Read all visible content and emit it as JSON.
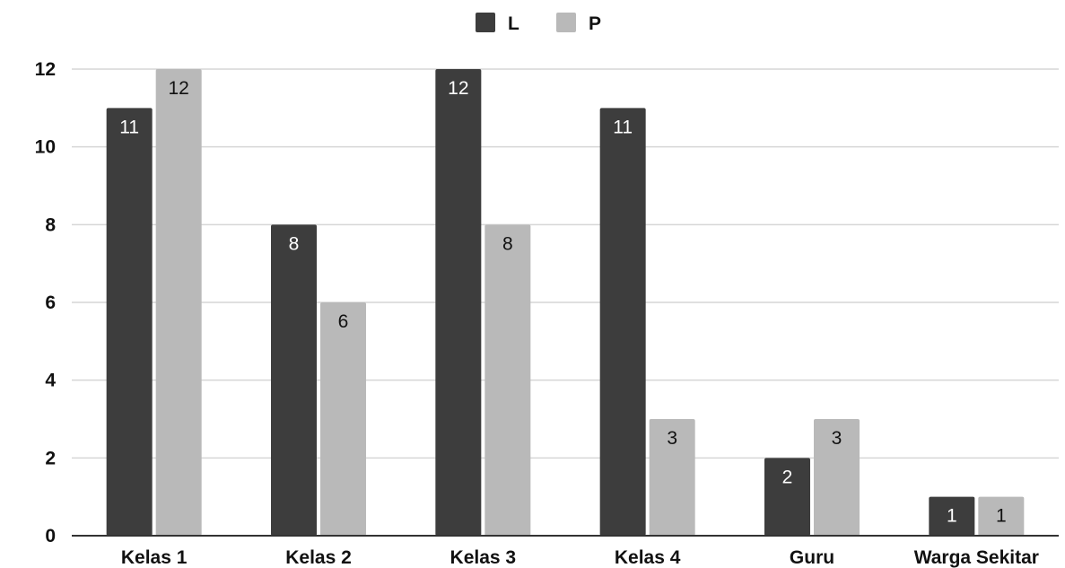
{
  "chart_data": {
    "type": "bar",
    "categories": [
      "Kelas 1",
      "Kelas 2",
      "Kelas 3",
      "Kelas 4",
      "Guru",
      "Warga Sekitar"
    ],
    "series": [
      {
        "name": "L",
        "values": [
          11,
          8,
          12,
          11,
          2,
          1
        ],
        "color": "#3d3d3d",
        "label_color": "#ffffff"
      },
      {
        "name": "P",
        "values": [
          12,
          6,
          8,
          3,
          3,
          1
        ],
        "color": "#b9b9b9",
        "label_color": "#111111"
      }
    ],
    "yticks": [
      0,
      2,
      4,
      6,
      8,
      10,
      12
    ],
    "ylim": [
      0,
      12
    ],
    "grid": true,
    "legend": "top-center",
    "data_labels": true
  }
}
